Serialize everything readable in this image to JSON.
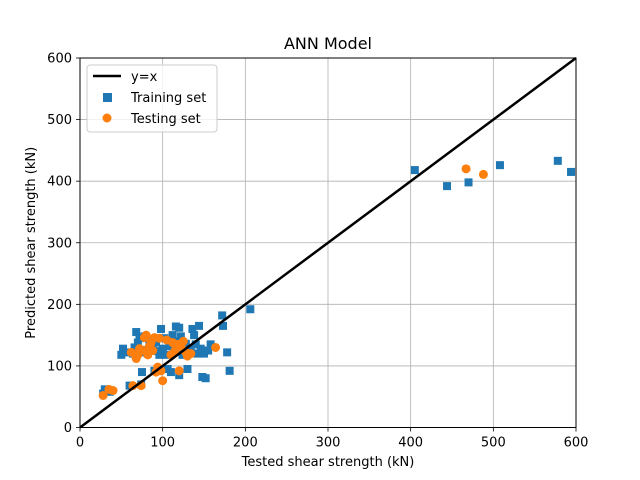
{
  "chart_data": {
    "type": "scatter",
    "title": "ANN Model",
    "xlabel": "Tested shear strength (kN)",
    "ylabel": "Predicted shear strength (kN)",
    "xlim": [
      0,
      600
    ],
    "ylim": [
      0,
      600
    ],
    "xticks": [
      "0",
      "100",
      "200",
      "300",
      "400",
      "500",
      "600"
    ],
    "yticks": [
      "0",
      "100",
      "200",
      "300",
      "400",
      "500",
      "600"
    ],
    "grid": true,
    "legend_position": "top-left",
    "series": [
      {
        "name": "y=x",
        "kind": "line",
        "color": "#000000",
        "points": [
          [
            0,
            0
          ],
          [
            600,
            600
          ]
        ]
      },
      {
        "name": "Training set",
        "kind": "square",
        "color": "#1f77b4",
        "points": [
          [
            28,
            55
          ],
          [
            30,
            62
          ],
          [
            36,
            58
          ],
          [
            50,
            118
          ],
          [
            52,
            128
          ],
          [
            58,
            122
          ],
          [
            60,
            68
          ],
          [
            64,
            120
          ],
          [
            66,
            130
          ],
          [
            68,
            155
          ],
          [
            70,
            138
          ],
          [
            72,
            145
          ],
          [
            74,
            70
          ],
          [
            75,
            90
          ],
          [
            76,
            122
          ],
          [
            78,
            148
          ],
          [
            80,
            126
          ],
          [
            82,
            120
          ],
          [
            84,
            135
          ],
          [
            86,
            142
          ],
          [
            88,
            130
          ],
          [
            90,
            92
          ],
          [
            92,
            138
          ],
          [
            94,
            124
          ],
          [
            96,
            118
          ],
          [
            98,
            160
          ],
          [
            100,
            128
          ],
          [
            102,
            145
          ],
          [
            104,
            118
          ],
          [
            106,
            95
          ],
          [
            108,
            132
          ],
          [
            110,
            90
          ],
          [
            112,
            150
          ],
          [
            114,
            125
          ],
          [
            116,
            164
          ],
          [
            118,
            140
          ],
          [
            120,
            162
          ],
          [
            120,
            85
          ],
          [
            122,
            148
          ],
          [
            124,
            118
          ],
          [
            126,
            130
          ],
          [
            128,
            136
          ],
          [
            130,
            95
          ],
          [
            132,
            126
          ],
          [
            134,
            122
          ],
          [
            136,
            160
          ],
          [
            138,
            150
          ],
          [
            140,
            135
          ],
          [
            142,
            120
          ],
          [
            144,
            165
          ],
          [
            146,
            128
          ],
          [
            148,
            82
          ],
          [
            150,
            120
          ],
          [
            152,
            80
          ],
          [
            155,
            125
          ],
          [
            158,
            135
          ],
          [
            172,
            182
          ],
          [
            173,
            165
          ],
          [
            178,
            122
          ],
          [
            181,
            92
          ],
          [
            206,
            192
          ],
          [
            405,
            418
          ],
          [
            444,
            392
          ],
          [
            470,
            398
          ],
          [
            508,
            426
          ],
          [
            578,
            433
          ],
          [
            594,
            415
          ]
        ]
      },
      {
        "name": "Testing set",
        "kind": "circle",
        "color": "#ff7f0e",
        "points": [
          [
            28,
            52
          ],
          [
            35,
            62
          ],
          [
            40,
            60
          ],
          [
            62,
            122
          ],
          [
            64,
            68
          ],
          [
            68,
            112
          ],
          [
            70,
            118
          ],
          [
            72,
            128
          ],
          [
            74,
            68
          ],
          [
            76,
            125
          ],
          [
            78,
            146
          ],
          [
            80,
            150
          ],
          [
            82,
            118
          ],
          [
            84,
            132
          ],
          [
            86,
            138
          ],
          [
            88,
            125
          ],
          [
            90,
            146
          ],
          [
            92,
            90
          ],
          [
            94,
            98
          ],
          [
            96,
            145
          ],
          [
            98,
            92
          ],
          [
            100,
            76
          ],
          [
            105,
            142
          ],
          [
            110,
            118
          ],
          [
            112,
            138
          ],
          [
            115,
            125
          ],
          [
            118,
            135
          ],
          [
            120,
            92
          ],
          [
            122,
            132
          ],
          [
            125,
            140
          ],
          [
            128,
            122
          ],
          [
            130,
            116
          ],
          [
            134,
            120
          ],
          [
            164,
            130
          ],
          [
            467,
            420
          ],
          [
            488,
            411
          ]
        ]
      }
    ]
  }
}
